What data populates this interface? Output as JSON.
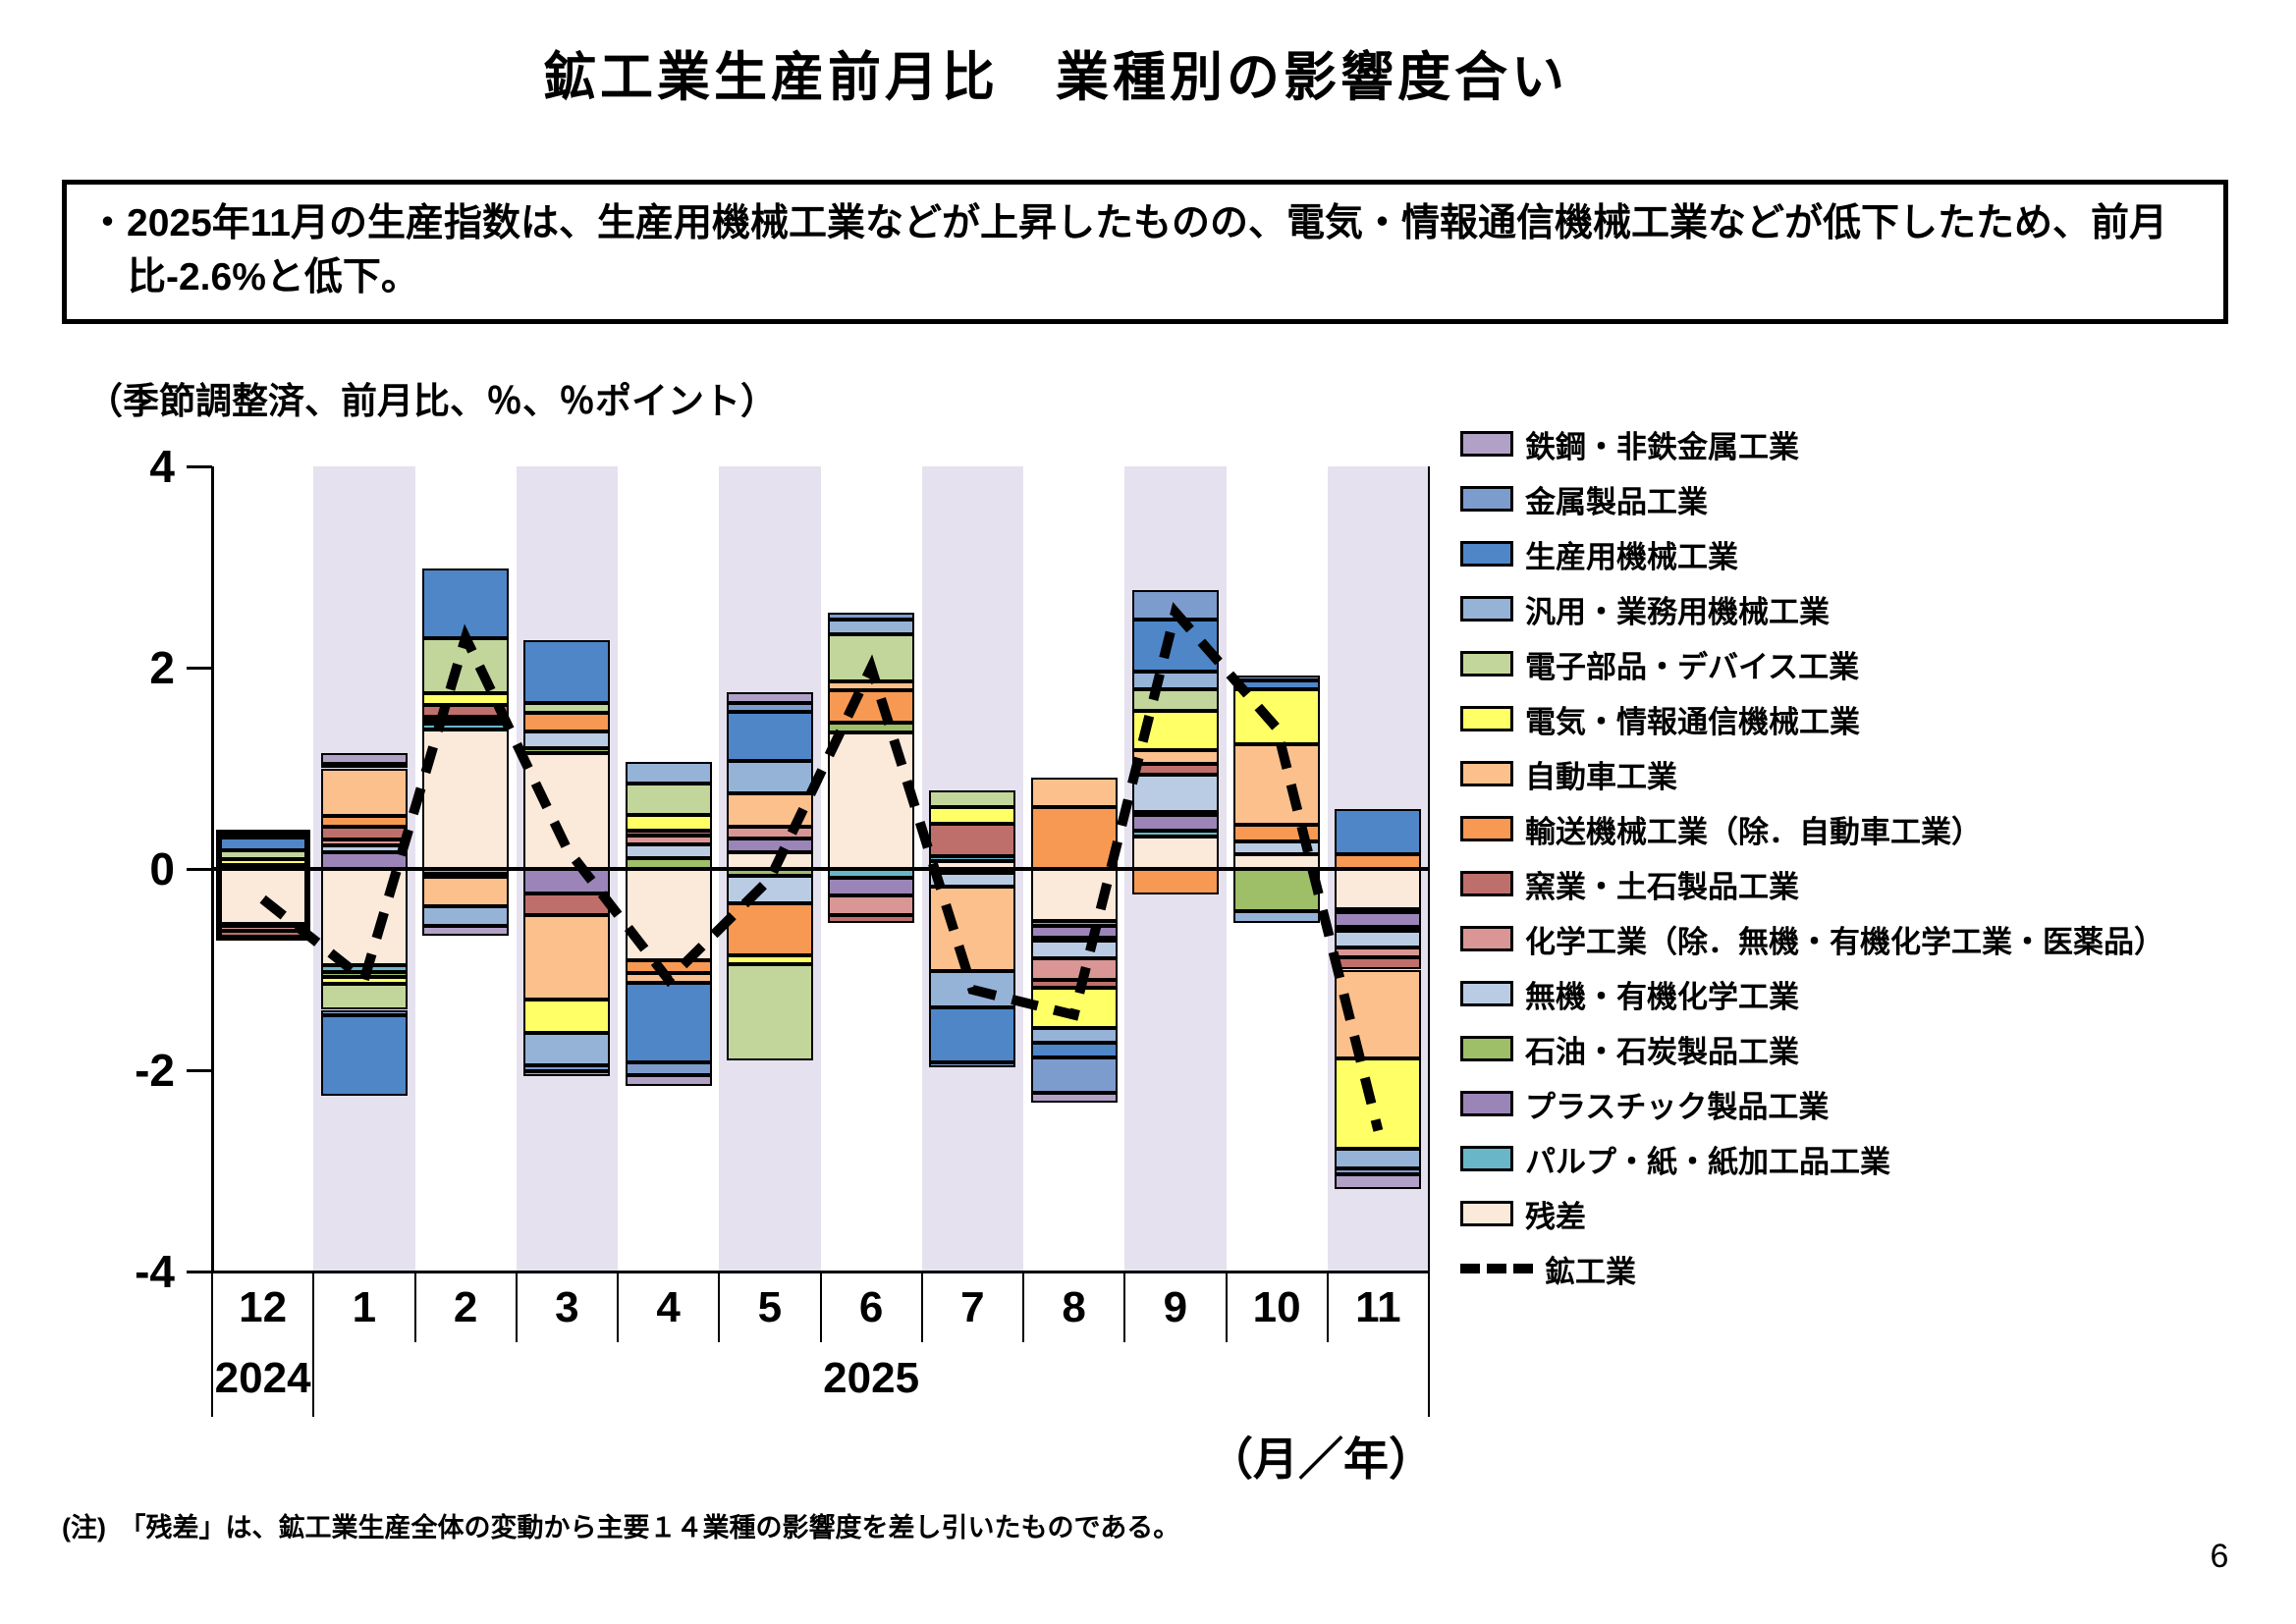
{
  "page": {
    "title": "鉱工業生産前月比　業種別の影響度合い",
    "note": "・2025年11月の生産指数は、生産用機械工業などが上昇したものの、電気・情報通信機械工業などが低下したため、前月比-2.6%と低下。",
    "axis_caption": "（季節調整済、前月比、％、％ポイント）",
    "month_year_caption": "（月／年）",
    "footnote": "(注)　「残差」は、鉱工業生産全体の変動から主要１４業種の影響度を差し引いたものである。",
    "page_number": "6"
  },
  "chart_data": {
    "type": "bar",
    "subtype": "stacked-bar-with-line",
    "ylim": [
      -4,
      4
    ],
    "yticks": [
      4,
      2,
      0,
      -2,
      -4
    ],
    "grid": false,
    "legend_position": "right",
    "categories": [
      "12",
      "1",
      "2",
      "3",
      "4",
      "5",
      "6",
      "7",
      "8",
      "9",
      "10",
      "11"
    ],
    "year_row": [
      {
        "label": "2024",
        "span_months": [
          "12"
        ]
      },
      {
        "label": "2025",
        "span_months": [
          "1",
          "2",
          "3",
          "4",
          "5",
          "6",
          "7",
          "8",
          "9",
          "10",
          "11"
        ]
      }
    ],
    "shaded_months": [
      false,
      true,
      false,
      true,
      false,
      true,
      false,
      true,
      false,
      true,
      false,
      true
    ],
    "background_band_color": "#e6e1ee",
    "highlight_outline_month": "12",
    "series": [
      {
        "name": "鉄鋼・非鉄金属工業",
        "color": "#b2a1c7",
        "values": [
          0,
          0.11,
          -0.09,
          -0.05,
          -0.11,
          0.11,
          0,
          0,
          -0.1,
          0,
          0,
          -0.15
        ]
      },
      {
        "name": "金属製品工業",
        "color": "#7d9cce",
        "values": [
          0.04,
          0.04,
          0,
          -0.06,
          -0.13,
          0.09,
          0.07,
          -0.05,
          -0.35,
          0.29,
          0.05,
          -0.05
        ]
      },
      {
        "name": "生産用機械工業",
        "color": "#4e86c8",
        "values": [
          0.12,
          -0.8,
          0.7,
          0.62,
          -0.79,
          0.49,
          0,
          -0.54,
          -0.14,
          0.52,
          0.08,
          0.45
        ]
      },
      {
        "name": "汎用・業務用機械工業",
        "color": "#95b3d7",
        "values": [
          0,
          -0.05,
          -0.2,
          -0.32,
          0.21,
          0.32,
          0.15,
          -0.37,
          -0.15,
          0.17,
          -0.12,
          -0.2
        ]
      },
      {
        "name": "電子部品・デバイス工業",
        "color": "#c2d69b",
        "values": [
          0.09,
          -0.26,
          0.54,
          0.1,
          0.31,
          -0.95,
          0.47,
          0.17,
          0,
          0.22,
          0,
          0
        ]
      },
      {
        "name": "電気・情報通信機械工業",
        "color": "#ffff66",
        "values": [
          0.06,
          -0.07,
          0.12,
          -0.33,
          0.16,
          -0.09,
          0,
          0.16,
          -0.4,
          0.39,
          0.55,
          -0.9
        ]
      },
      {
        "name": "自動車工業",
        "color": "#fbc08c",
        "values": [
          0,
          0.47,
          -0.29,
          -0.84,
          -0.1,
          0.33,
          0.08,
          -0.83,
          0.3,
          0.14,
          0.8,
          -0.88
        ]
      },
      {
        "name": "輸送機械工業（除．自動車工業）",
        "color": "#f79952",
        "values": [
          0,
          0.11,
          0,
          0.18,
          -0.12,
          -0.52,
          0.33,
          0,
          0.61,
          -0.25,
          0.17,
          0.15
        ]
      },
      {
        "name": "窯業・土石製品工業",
        "color": "#bf6f6b",
        "values": [
          -0.06,
          0.13,
          0.12,
          -0.22,
          0.05,
          0,
          -0.08,
          0.32,
          -0.08,
          0.1,
          0,
          -0.12
        ]
      },
      {
        "name": "化学工業（除．無機・有機化学工業・医薬品）",
        "color": "#d99694",
        "values": [
          -0.04,
          0.06,
          -0.03,
          0,
          0.09,
          0.12,
          -0.2,
          0,
          -0.21,
          0,
          0,
          -0.1
        ]
      },
      {
        "name": "無機・有機化学工業",
        "color": "#b9cce4",
        "values": [
          0.04,
          0.06,
          0.04,
          0.17,
          0.13,
          -0.27,
          0,
          -0.14,
          -0.18,
          0.37,
          0.12,
          -0.17
        ]
      },
      {
        "name": "石油・石炭製品工業",
        "color": "#9fbe68",
        "values": [
          0,
          -0.05,
          -0.05,
          0.05,
          0.11,
          -0.07,
          0.09,
          -0.04,
          -0.03,
          0.03,
          -0.42,
          -0.03
        ]
      },
      {
        "name": "プラスチック製品工業",
        "color": "#9b85b8",
        "values": [
          0,
          0.17,
          0.03,
          -0.24,
          0,
          0.13,
          -0.17,
          0,
          -0.11,
          0.16,
          0,
          -0.15
        ]
      },
      {
        "name": "パルプ・紙・紙加工品工業",
        "color": "#69b6c8",
        "values": [
          -0.02,
          -0.06,
          0.05,
          0,
          0,
          0,
          -0.09,
          0.05,
          -0.05,
          0.06,
          0,
          -0.03
        ]
      },
      {
        "name": "残差",
        "color": "#fbe9d9",
        "values": [
          -0.55,
          -0.96,
          1.39,
          1.15,
          -0.91,
          0.17,
          1.36,
          0.08,
          -0.52,
          0.32,
          0.15,
          -0.4
        ]
      }
    ],
    "line": {
      "name": "鉱工業",
      "color": "#000000",
      "style": "dashed",
      "values": [
        -0.3,
        -1.1,
        2.3,
        0.2,
        -1.1,
        -0.1,
        2.0,
        -1.2,
        -1.45,
        2.55,
        1.4,
        -2.6
      ]
    }
  }
}
